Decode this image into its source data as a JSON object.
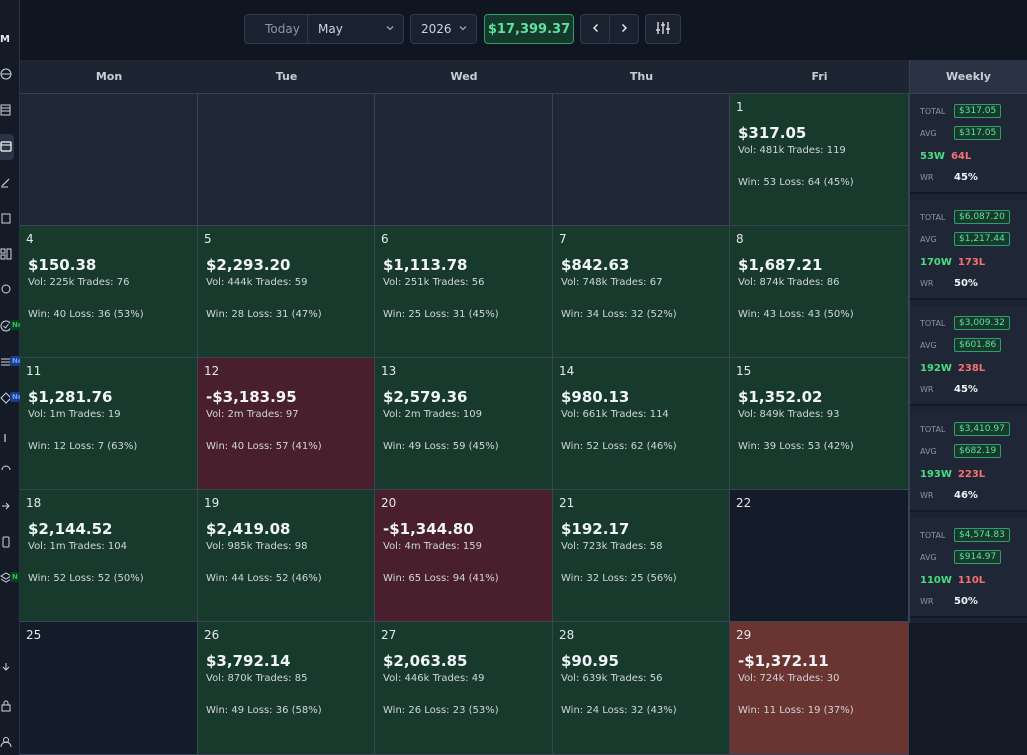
{
  "rail": {
    "logo": "M",
    "icons": [
      {
        "name": "globe-icon",
        "top": 68
      },
      {
        "name": "ledger-icon",
        "top": 104
      },
      {
        "name": "calendar-icon",
        "top": 140
      },
      {
        "name": "pencil-icon",
        "top": 176
      },
      {
        "name": "clipboard-icon",
        "top": 212
      },
      {
        "name": "layout-icon",
        "top": 248
      },
      {
        "name": "bulb-icon",
        "top": 284
      },
      {
        "name": "check-icon",
        "top": 320
      },
      {
        "name": "list-icon",
        "top": 356
      },
      {
        "name": "diamond-icon",
        "top": 392
      },
      {
        "name": "bar-icon",
        "top": 432
      },
      {
        "name": "refresh-icon",
        "top": 464
      },
      {
        "name": "arrow-icon",
        "top": 500
      },
      {
        "name": "phone-icon",
        "top": 536
      },
      {
        "name": "layers-icon",
        "top": 572
      },
      {
        "name": "download-icon",
        "top": 662
      },
      {
        "name": "lock-icon",
        "top": 700
      },
      {
        "name": "user-icon",
        "top": 736
      }
    ],
    "badges": [
      {
        "text": "New",
        "color": "#22c55e",
        "bg": "#0f3d22"
      },
      {
        "text": "Ne",
        "color": "#60a5fa",
        "bg": "#1e3a8a"
      },
      {
        "text": "Ne",
        "color": "#60a5fa",
        "bg": "#1e3a8a"
      },
      {
        "text": "N",
        "color": "#22c55e",
        "bg": "#0f3d22"
      }
    ]
  },
  "toolbar": {
    "today_label": "Today",
    "month": "May",
    "year": "2026",
    "month_total": "$17,399.37",
    "prev_icon": "chevron-left-icon",
    "next_icon": "chevron-right-icon",
    "filter_icon": "sliders-icon"
  },
  "days": [
    "Mon",
    "Tue",
    "Wed",
    "Thu",
    "Fri"
  ],
  "weekly_label": "Weekly",
  "weeks": [
    [
      {
        "type": "empty"
      },
      {
        "type": "empty"
      },
      {
        "type": "empty"
      },
      {
        "type": "empty"
      },
      {
        "type": "win",
        "day": "1",
        "pnl": "$317.05",
        "vol": "Vol: 481k Trades: 119",
        "wl": "Win: 53 Loss: 64 (45%)"
      }
    ],
    [
      {
        "type": "win",
        "day": "4",
        "pnl": "$150.38",
        "vol": "Vol: 225k Trades: 76",
        "wl": "Win: 40 Loss: 36 (53%)"
      },
      {
        "type": "win",
        "day": "5",
        "pnl": "$2,293.20",
        "vol": "Vol: 444k Trades: 59",
        "wl": "Win: 28 Loss: 31 (47%)"
      },
      {
        "type": "win",
        "day": "6",
        "pnl": "$1,113.78",
        "vol": "Vol: 251k Trades: 56",
        "wl": "Win: 25 Loss: 31 (45%)"
      },
      {
        "type": "win",
        "day": "7",
        "pnl": "$842.63",
        "vol": "Vol: 748k Trades: 67",
        "wl": "Win: 34 Loss: 32 (52%)"
      },
      {
        "type": "win",
        "day": "8",
        "pnl": "$1,687.21",
        "vol": "Vol: 874k Trades: 86",
        "wl": "Win: 43 Loss: 43 (50%)"
      }
    ],
    [
      {
        "type": "win",
        "day": "11",
        "pnl": "$1,281.76",
        "vol": "Vol: 1m Trades: 19",
        "wl": "Win: 12 Loss: 7 (63%)"
      },
      {
        "type": "loss",
        "day": "12",
        "pnl": "-$3,183.95",
        "vol": "Vol: 2m Trades: 97",
        "wl": "Win: 40 Loss: 57 (41%)"
      },
      {
        "type": "win",
        "day": "13",
        "pnl": "$2,579.36",
        "vol": "Vol: 2m Trades: 109",
        "wl": "Win: 49 Loss: 59 (45%)"
      },
      {
        "type": "win",
        "day": "14",
        "pnl": "$980.13",
        "vol": "Vol: 661k Trades: 114",
        "wl": "Win: 52 Loss: 62 (46%)"
      },
      {
        "type": "win",
        "day": "15",
        "pnl": "$1,352.02",
        "vol": "Vol: 849k Trades: 93",
        "wl": "Win: 39 Loss: 53 (42%)"
      }
    ],
    [
      {
        "type": "win",
        "day": "18",
        "pnl": "$2,144.52",
        "vol": "Vol: 1m Trades: 104",
        "wl": "Win: 52 Loss: 52 (50%)"
      },
      {
        "type": "win",
        "day": "19",
        "pnl": "$2,419.08",
        "vol": "Vol: 985k Trades: 98",
        "wl": "Win: 44 Loss: 52 (46%)"
      },
      {
        "type": "loss",
        "day": "20",
        "pnl": "-$1,344.80",
        "vol": "Vol: 4m Trades: 159",
        "wl": "Win: 65 Loss: 94 (41%)"
      },
      {
        "type": "win",
        "day": "21",
        "pnl": "$192.17",
        "vol": "Vol: 723k Trades: 58",
        "wl": "Win: 32 Loss: 25 (56%)"
      },
      {
        "type": "noday",
        "day": "22"
      }
    ],
    [
      {
        "type": "noday",
        "day": "25"
      },
      {
        "type": "win",
        "day": "26",
        "pnl": "$3,792.14",
        "vol": "Vol: 870k Trades: 85",
        "wl": "Win: 49 Loss: 36 (58%)"
      },
      {
        "type": "win",
        "day": "27",
        "pnl": "$2,063.85",
        "vol": "Vol: 446k Trades: 49",
        "wl": "Win: 26 Loss: 23 (53%)"
      },
      {
        "type": "win",
        "day": "28",
        "pnl": "$90.95",
        "vol": "Vol: 639k Trades: 56",
        "wl": "Win: 24 Loss: 32 (43%)"
      },
      {
        "type": "loss2",
        "day": "29",
        "pnl": "-$1,372.11",
        "vol": "Vol: 724k Trades: 30",
        "wl": "Win: 11 Loss: 19 (37%)"
      }
    ]
  ],
  "weekly": [
    {
      "total": "$317.05",
      "avg": "$317.05",
      "w": "53W",
      "l": "64L",
      "wr": "45%"
    },
    {
      "total": "$6,087.20",
      "avg": "$1,217.44",
      "w": "170W",
      "l": "173L",
      "wr": "50%"
    },
    {
      "total": "$3,009.32",
      "avg": "$601.86",
      "w": "192W",
      "l": "238L",
      "wr": "45%"
    },
    {
      "total": "$3,410.97",
      "avg": "$682.19",
      "w": "193W",
      "l": "223L",
      "wr": "46%"
    },
    {
      "total": "$4,574.83",
      "avg": "$914.97",
      "w": "110W",
      "l": "110L",
      "wr": "50%"
    }
  ],
  "weekly_labels": {
    "total": "TOTAL",
    "avg": "AVG",
    "wr": "WR"
  }
}
